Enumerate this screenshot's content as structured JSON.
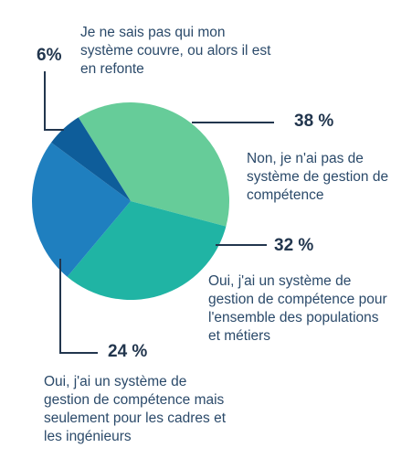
{
  "chart_data": {
    "type": "pie",
    "title": "",
    "slices": [
      {
        "label": "Non, je n'ai pas de système de gestion de compétence",
        "value": 38,
        "value_text": "38 %",
        "color": "#66cc99"
      },
      {
        "label": "Oui, j'ai un système de gestion de compétence pour l'ensemble des populations et métiers",
        "value": 32,
        "value_text": "32 %",
        "color": "#20b4a4"
      },
      {
        "label": "Oui, j'ai un système de gestion de compétence mais seulement pour les cadres et les ingénieurs",
        "value": 24,
        "value_text": "24 %",
        "color": "#1f7fbf"
      },
      {
        "label": "Je ne sais pas qui mon système couvre, ou alors il est en refonte",
        "value": 6,
        "value_text": "6%",
        "color": "#0e5d9a"
      }
    ]
  }
}
